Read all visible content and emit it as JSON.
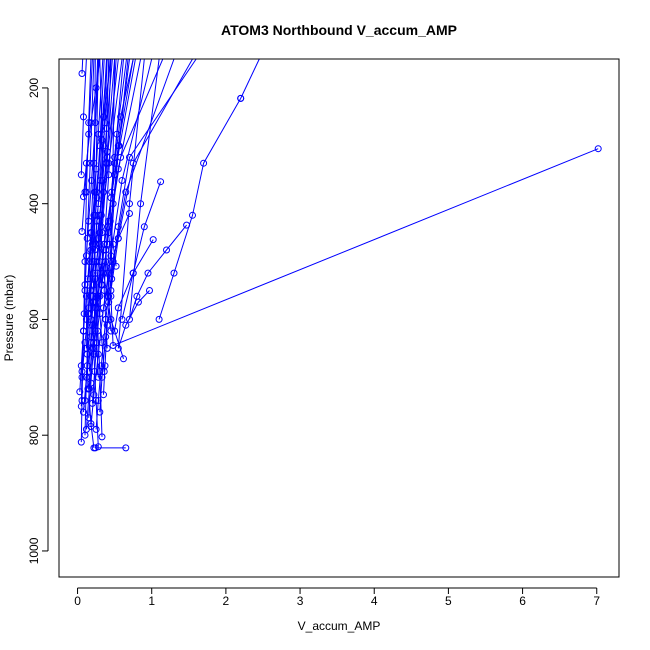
{
  "chart_data": {
    "type": "line",
    "title": "ATOM3 Northbound V_accum_AMP",
    "xlabel": "V_accum_AMP",
    "ylabel": "Pressure (mbar)",
    "xlim": [
      -0.25,
      7.3
    ],
    "ylim": [
      1045,
      150
    ],
    "y_reversed": true,
    "x_ticks": [
      "0",
      "1",
      "2",
      "3",
      "4",
      "5",
      "6",
      "7"
    ],
    "y_ticks": [
      "200",
      "400",
      "600",
      "800",
      "1000"
    ],
    "grid": false,
    "legend": "none",
    "series_color": "#0000ff",
    "marker": "open-circle",
    "series": [
      {
        "x": [
          0.65,
          0.24
        ],
        "y": [
          822,
          822
        ]
      },
      {
        "x": [
          0.22,
          0.18,
          0.15,
          0.2,
          0.25,
          0.3,
          0.35,
          0.3
        ],
        "y": [
          822,
          780,
          720,
          650,
          560,
          470,
          380,
          150
        ]
      },
      {
        "x": [
          0.28,
          0.25,
          0.22,
          0.27,
          0.33,
          0.4,
          0.45
        ],
        "y": [
          820,
          740,
          660,
          560,
          450,
          330,
          150
        ]
      },
      {
        "x": [
          0.05,
          0.06,
          0.08,
          0.1,
          0.12,
          0.15,
          0.18
        ],
        "y": [
          812,
          740,
          620,
          500,
          380,
          260,
          150
        ]
      },
      {
        "x": [
          0.1,
          0.12,
          0.15,
          0.2,
          0.25,
          0.28
        ],
        "y": [
          800,
          700,
          590,
          470,
          340,
          150
        ]
      },
      {
        "x": [
          0.33,
          0.3,
          0.25,
          0.22,
          0.24
        ],
        "y": [
          803,
          690,
          560,
          420,
          150
        ]
      },
      {
        "x": [
          0.62,
          0.45,
          0.35,
          0.3,
          0.35,
          0.4
        ],
        "y": [
          668,
          600,
          520,
          430,
          300,
          150
        ]
      },
      {
        "x": [
          7.02,
          0.48,
          0.45,
          0.5
        ],
        "y": [
          305,
          645,
          560,
          150
        ]
      },
      {
        "x": [
          2.2,
          1.7,
          1.55,
          1.3,
          1.1
        ],
        "y": [
          218,
          330,
          420,
          520,
          600
        ]
      },
      {
        "x": [
          2.2,
          2.45
        ],
        "y": [
          218,
          150
        ]
      },
      {
        "x": [
          1.47,
          1.2,
          0.95,
          0.8,
          0.7,
          0.85,
          1.1
        ],
        "y": [
          437,
          480,
          520,
          560,
          600,
          400,
          150
        ]
      },
      {
        "x": [
          1.02,
          0.75,
          0.55,
          0.5
        ],
        "y": [
          462,
          520,
          580,
          620
        ]
      },
      {
        "x": [
          1.12,
          0.9,
          0.75,
          0.6
        ],
        "y": [
          362,
          440,
          520,
          600
        ]
      },
      {
        "x": [
          0.97,
          0.82,
          0.65,
          0.55,
          0.7,
          0.9
        ],
        "y": [
          550,
          570,
          610,
          650,
          400,
          150
        ]
      },
      {
        "x": [
          0.7,
          0.55,
          0.45,
          0.4,
          0.55,
          0.75
        ],
        "y": [
          417,
          460,
          510,
          560,
          300,
          150
        ]
      },
      {
        "x": [
          0.05,
          0.08,
          0.12
        ],
        "y": [
          350,
          250,
          150
        ]
      },
      {
        "x": [
          0.06,
          0.07
        ],
        "y": [
          175,
          150
        ]
      },
      {
        "x": [
          0.06,
          0.1,
          0.15,
          0.2
        ],
        "y": [
          448,
          380,
          280,
          150
        ]
      },
      {
        "x": [
          0.08,
          0.12,
          0.18,
          0.25,
          0.3
        ],
        "y": [
          388,
          330,
          260,
          200,
          150
        ]
      },
      {
        "x": [
          0.03,
          0.05,
          0.08,
          0.12,
          0.18,
          0.25,
          0.35,
          0.45
        ],
        "y": [
          725,
          680,
          620,
          560,
          480,
          380,
          250,
          150
        ]
      },
      {
        "x": [
          0.06,
          0.1,
          0.15,
          0.22,
          0.3,
          0.4,
          0.55
        ],
        "y": [
          700,
          640,
          580,
          500,
          420,
          320,
          150
        ]
      },
      {
        "x": [
          0.08,
          0.12,
          0.18,
          0.25,
          0.35,
          0.5,
          0.7
        ],
        "y": [
          760,
          700,
          640,
          570,
          480,
          350,
          150
        ]
      },
      {
        "x": [
          0.12,
          0.16,
          0.22,
          0.3,
          0.4,
          0.55,
          0.85
        ],
        "y": [
          790,
          720,
          650,
          560,
          470,
          340,
          150
        ]
      },
      {
        "x": [
          0.18,
          0.22,
          0.28,
          0.35,
          0.45,
          0.6,
          1.0
        ],
        "y": [
          785,
          730,
          660,
          580,
          490,
          360,
          150
        ]
      },
      {
        "x": [
          0.25,
          0.28,
          0.32,
          0.38,
          0.48,
          0.65,
          1.3
        ],
        "y": [
          790,
          740,
          680,
          600,
          500,
          380,
          150
        ]
      },
      {
        "x": [
          0.3,
          0.33,
          0.38,
          0.45,
          0.55,
          0.75,
          1.55
        ],
        "y": [
          760,
          700,
          630,
          550,
          460,
          330,
          150
        ]
      },
      {
        "x": [
          0.2,
          0.23,
          0.27,
          0.33,
          0.42,
          0.58,
          1.15
        ],
        "y": [
          745,
          690,
          620,
          540,
          450,
          320,
          150
        ]
      },
      {
        "x": [
          0.35,
          0.37,
          0.4,
          0.46,
          0.55,
          0.7,
          1.6
        ],
        "y": [
          730,
          680,
          610,
          530,
          440,
          320,
          150
        ]
      },
      {
        "x": [
          0.15,
          0.18,
          0.22,
          0.28,
          0.36,
          0.5,
          0.78
        ],
        "y": [
          770,
          710,
          640,
          560,
          470,
          350,
          150
        ]
      },
      {
        "x": [
          0.1,
          0.13,
          0.17,
          0.22,
          0.3,
          0.42,
          0.6
        ],
        "y": [
          740,
          680,
          610,
          540,
          450,
          330,
          150
        ]
      },
      {
        "x": [
          0.28,
          0.26,
          0.24,
          0.27,
          0.32,
          0.38,
          0.42
        ],
        "y": [
          700,
          640,
          580,
          520,
          440,
          330,
          150
        ]
      },
      {
        "x": [
          0.4,
          0.38,
          0.36,
          0.38,
          0.42,
          0.5,
          0.62
        ],
        "y": [
          650,
          600,
          550,
          500,
          430,
          320,
          150
        ]
      },
      {
        "x": [
          0.36,
          0.33,
          0.3,
          0.32,
          0.36,
          0.42,
          0.52
        ],
        "y": [
          690,
          640,
          590,
          540,
          470,
          350,
          150
        ]
      },
      {
        "x": [
          0.45,
          0.42,
          0.4,
          0.43,
          0.48,
          0.56,
          0.68
        ],
        "y": [
          620,
          570,
          520,
          470,
          400,
          300,
          150
        ]
      },
      {
        "x": [
          0.22,
          0.2,
          0.18,
          0.2,
          0.24,
          0.3,
          0.36
        ],
        "y": [
          660,
          610,
          560,
          500,
          420,
          300,
          150
        ]
      },
      {
        "x": [
          0.14,
          0.13,
          0.12,
          0.14,
          0.18,
          0.22,
          0.27
        ],
        "y": [
          720,
          660,
          600,
          530,
          450,
          330,
          150
        ]
      },
      {
        "x": [
          0.18,
          0.17,
          0.16,
          0.19,
          0.23,
          0.28,
          0.34
        ],
        "y": [
          600,
          550,
          500,
          450,
          380,
          280,
          150
        ]
      },
      {
        "x": [
          0.26,
          0.24,
          0.23,
          0.26,
          0.31,
          0.37,
          0.44
        ],
        "y": [
          580,
          530,
          480,
          430,
          360,
          260,
          150
        ]
      },
      {
        "x": [
          0.52,
          0.48,
          0.44,
          0.45,
          0.5,
          0.58,
          0.75
        ],
        "y": [
          508,
          470,
          430,
          390,
          330,
          250,
          150
        ]
      },
      {
        "x": [
          0.09,
          0.1,
          0.12,
          0.15,
          0.19,
          0.24,
          0.29
        ],
        "y": [
          590,
          540,
          490,
          430,
          360,
          260,
          150
        ]
      },
      {
        "x": [
          0.32,
          0.3,
          0.28,
          0.3,
          0.34,
          0.39,
          0.47
        ],
        "y": [
          540,
          500,
          460,
          420,
          360,
          270,
          150
        ]
      },
      {
        "x": [
          0.12,
          0.14,
          0.17,
          0.21,
          0.26,
          0.32,
          0.4
        ],
        "y": [
          650,
          590,
          530,
          470,
          390,
          280,
          150
        ]
      },
      {
        "x": [
          0.42,
          0.4,
          0.38,
          0.41,
          0.46,
          0.53,
          0.66
        ],
        "y": [
          560,
          520,
          480,
          440,
          380,
          280,
          150
        ]
      },
      {
        "x": [
          0.24,
          0.22,
          0.21,
          0.24,
          0.28,
          0.33,
          0.39
        ],
        "y": [
          620,
          570,
          520,
          470,
          400,
          290,
          150
        ]
      },
      {
        "x": [
          0.05,
          0.06,
          0.08,
          0.1,
          0.13,
          0.17,
          0.22
        ],
        "y": [
          750,
          690,
          620,
          550,
          460,
          330,
          150
        ]
      },
      {
        "x": [
          0.16,
          0.18,
          0.21,
          0.26,
          0.32,
          0.4,
          0.5
        ],
        "y": [
          690,
          630,
          570,
          500,
          420,
          310,
          150
        ]
      }
    ]
  }
}
